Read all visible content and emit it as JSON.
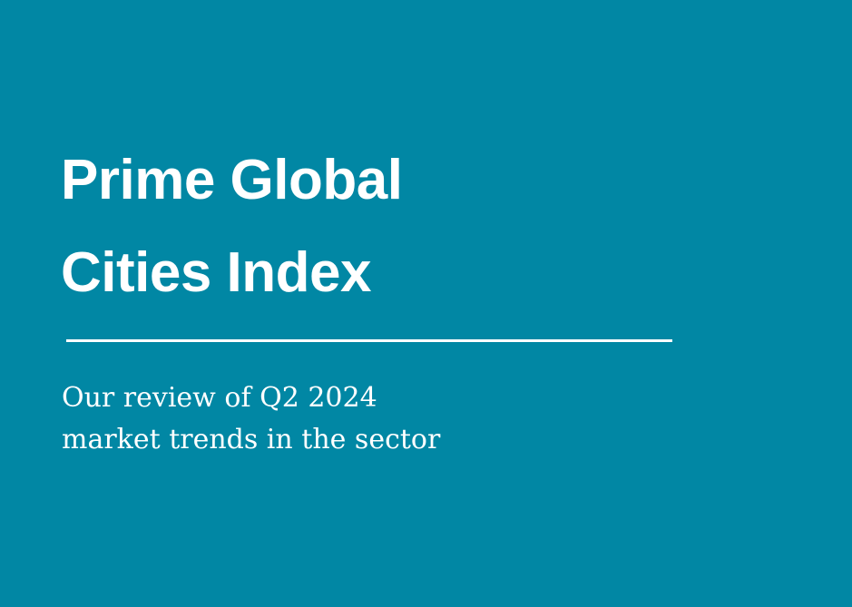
{
  "cover": {
    "background_color": "#0187a4",
    "text_color": "#ffffff",
    "title_lines": [
      "Prime Global",
      "Cities Index"
    ],
    "subtitle_lines": [
      "Our review of Q2 2024",
      "market trends in the sector"
    ]
  }
}
